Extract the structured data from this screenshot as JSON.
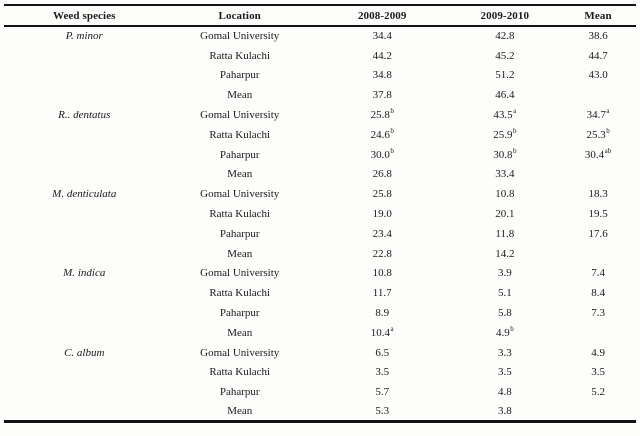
{
  "page": {
    "background_color": "#fdfdfc",
    "text_color": "#1b1b1b",
    "rule_color": "#141414"
  },
  "table": {
    "columns": [
      "Weed species",
      "Location",
      "2008-2009",
      "2009-2010",
      "Mean"
    ],
    "sections": [
      {
        "species": "P. minor",
        "rows": [
          {
            "location": "Gomal University",
            "y2008_2009": "34.4",
            "y2009_2010": "42.8",
            "mean": "38.6"
          },
          {
            "location": "Ratta Kulachi",
            "y2008_2009": "44.2",
            "y2009_2010": "45.2",
            "mean": "44.7"
          },
          {
            "location": "Paharpur",
            "y2008_2009": "34.8",
            "y2009_2010": "51.2",
            "mean": "43.0"
          },
          {
            "location": "Mean",
            "y2008_2009": "37.8",
            "y2009_2010": "46.4",
            "mean": ""
          }
        ]
      },
      {
        "species": "R.. dentatus",
        "rows": [
          {
            "location": "Gomal University",
            "y2008_2009": "25.8^b",
            "y2009_2010": "43.5^a",
            "mean": "34.7^a"
          },
          {
            "location": "Ratta Kulachi",
            "y2008_2009": "24.6^b",
            "y2009_2010": "25.9^b",
            "mean": "25.3^b"
          },
          {
            "location": "Paharpur",
            "y2008_2009": "30.0^b",
            "y2009_2010": "30.8^b",
            "mean": "30.4^ab"
          },
          {
            "location": "Mean",
            "y2008_2009": "26.8",
            "y2009_2010": "33.4",
            "mean": ""
          }
        ]
      },
      {
        "species": "M. denticulata",
        "rows": [
          {
            "location": "Gomal University",
            "y2008_2009": "25.8",
            "y2009_2010": "10.8",
            "mean": "18.3"
          },
          {
            "location": "Ratta Kulachi",
            "y2008_2009": "19.0",
            "y2009_2010": "20.1",
            "mean": "19.5"
          },
          {
            "location": "Paharpur",
            "y2008_2009": "23.4",
            "y2009_2010": "11.8",
            "mean": "17.6"
          },
          {
            "location": "Mean",
            "y2008_2009": "22.8",
            "y2009_2010": "14.2",
            "mean": ""
          }
        ]
      },
      {
        "species": "M. indica",
        "rows": [
          {
            "location": "Gomal University",
            "y2008_2009": "10.8",
            "y2009_2010": "3.9",
            "mean": "7.4"
          },
          {
            "location": "Ratta Kulachi",
            "y2008_2009": "11.7",
            "y2009_2010": "5.1",
            "mean": "8.4"
          },
          {
            "location": "Paharpur",
            "y2008_2009": "8.9",
            "y2009_2010": "5.8",
            "mean": "7.3"
          },
          {
            "location": "Mean",
            "y2008_2009": "10.4^a",
            "y2009_2010": "4.9^b",
            "mean": ""
          }
        ]
      },
      {
        "species": "C. album",
        "rows": [
          {
            "location": "Gomal University",
            "y2008_2009": "6.5",
            "y2009_2010": "3.3",
            "mean": "4.9"
          },
          {
            "location": "Ratta Kulachi",
            "y2008_2009": "3.5",
            "y2009_2010": "3.5",
            "mean": "3.5"
          },
          {
            "location": "Paharpur",
            "y2008_2009": "5.7",
            "y2009_2010": "4.8",
            "mean": "5.2"
          },
          {
            "location": "Mean",
            "y2008_2009": "5.3",
            "y2009_2010": "3.8",
            "mean": ""
          }
        ]
      }
    ]
  }
}
